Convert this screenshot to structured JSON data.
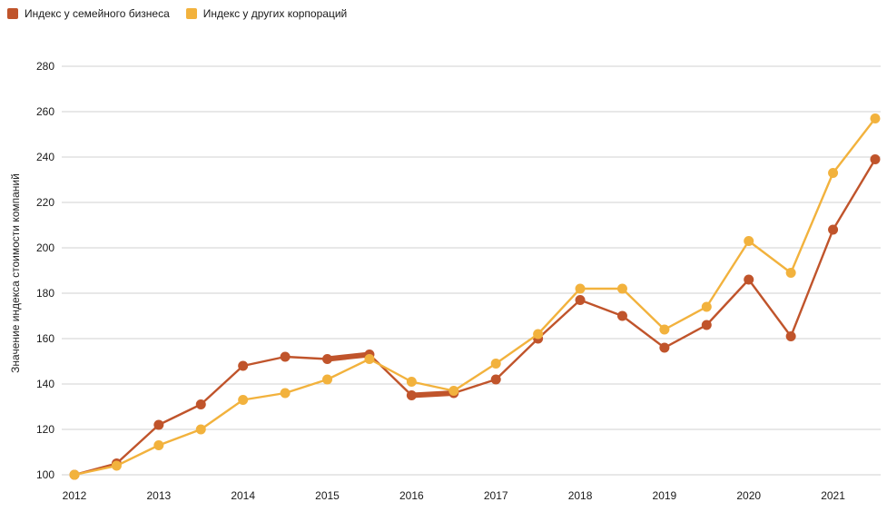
{
  "legend": {
    "items": [
      {
        "id": "family",
        "label": "Индекс у семейного бизнеса",
        "color": "#c0542b"
      },
      {
        "id": "corporations",
        "label": "Индекс у других корпораций",
        "color": "#f2b23d"
      }
    ]
  },
  "y_axis": {
    "title": "Значение индекса стоимости компаний",
    "ticks": [
      100,
      120,
      140,
      160,
      180,
      200,
      220,
      240,
      260,
      280
    ]
  },
  "x_axis": {
    "labels": [
      "2012",
      "2013",
      "2014",
      "2015",
      "2016",
      "2017",
      "2018",
      "2019",
      "2020",
      "2021"
    ]
  },
  "colors": {
    "gridline": "#d2d2d2",
    "background": "#ffffff"
  },
  "chart_data": {
    "type": "line",
    "title": "",
    "xlabel": "",
    "ylabel": "Значение индекса стоимости компаний",
    "x": [
      2012,
      2012.5,
      2013,
      2013.5,
      2014,
      2014.5,
      2015,
      2015.5,
      2016,
      2016.5,
      2017,
      2017.5,
      2018,
      2018.5,
      2019,
      2019.5,
      2020,
      2020.5,
      2021,
      2021.5
    ],
    "series": [
      {
        "name": "Индекс у семейного бизнеса",
        "color": "#c0542b",
        "values": [
          100,
          105,
          122,
          131,
          148,
          152,
          151,
          153,
          135,
          136,
          142,
          160,
          177,
          170,
          156,
          166,
          186,
          161,
          208,
          239
        ],
        "thick_segments": [
          [
            6,
            7
          ],
          [
            8,
            9
          ]
        ]
      },
      {
        "name": "Индекс у других корпораций",
        "color": "#f2b23d",
        "values": [
          100,
          104,
          113,
          120,
          133,
          136,
          142,
          151,
          141,
          137,
          149,
          162,
          182,
          182,
          164,
          174,
          203,
          189,
          233,
          257
        ],
        "thick_segments": []
      }
    ],
    "ylim": [
      100,
      280
    ],
    "grid": "horizontal",
    "legend_position": "top-left",
    "marker": "circle"
  }
}
